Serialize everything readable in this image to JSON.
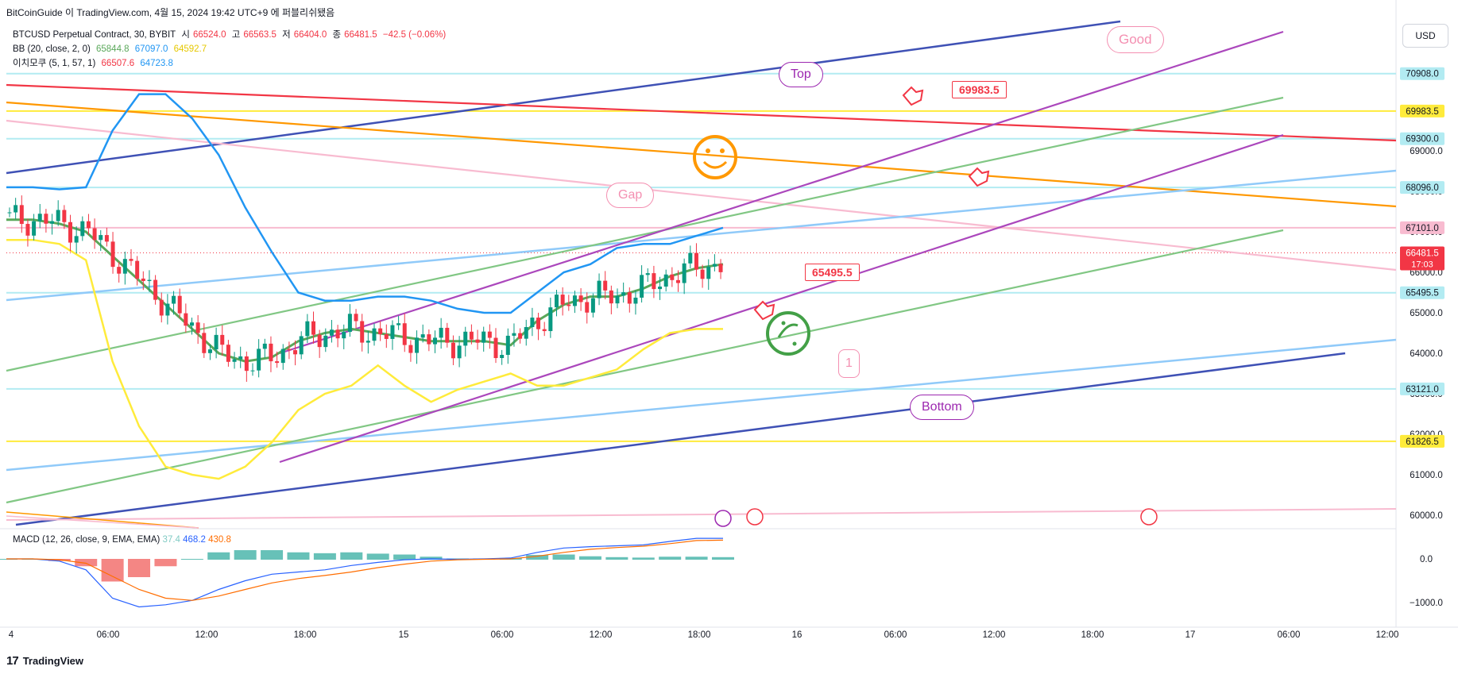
{
  "header": {
    "text": "BitCoinGuide 이 TradingView.com, 4월 15, 2024 19:42 UTC+9 에 퍼블리쉬됐음"
  },
  "legend": {
    "main": {
      "label": "BTCUSD Perpetual Contract, 30, BYBIT",
      "o_label": "시",
      "o": "66524.0",
      "h_label": "고",
      "h": "66563.5",
      "l_label": "저",
      "l": "66404.0",
      "c_label": "종",
      "c": "66481.5",
      "change": "−42.5 (−0.06%)"
    },
    "bb": {
      "label": "BB (20, close, 2, 0)",
      "v1": "65844.8",
      "v2": "67097.0",
      "v3": "64592.7"
    },
    "ichimoku": {
      "label": "이치모쿠 (5, 1, 57, 1)",
      "v1": "66507.6",
      "v2": "64723.8"
    }
  },
  "currency": "USD",
  "macd_legend": {
    "label": "MACD (12, 26, close, 9, EMA, EMA)",
    "v1": "37.4",
    "v2": "468.2",
    "v3": "430.8"
  },
  "footer": {
    "brand": "TradingView",
    "logo": "17"
  },
  "colors": {
    "up": "#089981",
    "down": "#f23645",
    "bb_basis": "#5aa85a",
    "bb_upper": "#2196f3",
    "bb_lower": "#ffeb3b"
  },
  "annotations": {
    "top": "Top",
    "good": "Good",
    "gap": "Gap",
    "bottom": "Bottom",
    "one": "1",
    "tag1": "69983.5",
    "tag2": "65495.5"
  },
  "chart_data": {
    "type": "line",
    "title": "BTCUSD Perpetual Contract, 30, BYBIT",
    "x_ticks": [
      "4",
      "06:00",
      "12:00",
      "18:00",
      "15",
      "06:00",
      "12:00",
      "18:00",
      "16",
      "06:00",
      "12:00",
      "18:00",
      "17",
      "06:00",
      "12:00"
    ],
    "y_ticks": [
      60000,
      61000,
      62000,
      63000,
      64000,
      65000,
      66000,
      67000,
      68000,
      69000
    ],
    "price_labels": [
      {
        "value": "70908.0",
        "color": "#b2ebf2"
      },
      {
        "value": "69983.5",
        "color": "#ffeb3b"
      },
      {
        "value": "69300.0",
        "color": "#b2ebf2"
      },
      {
        "value": "68096.0",
        "color": "#b2ebf2"
      },
      {
        "value": "67101.0",
        "color": "#f8bbd0"
      },
      {
        "value": "66481.5",
        "color": "#f23645"
      },
      {
        "value": "65495.5",
        "color": "#b2ebf2"
      },
      {
        "value": "63121.0",
        "color": "#b2ebf2"
      },
      {
        "value": "61826.5",
        "color": "#ffeb3b"
      }
    ],
    "countdown": "17:03",
    "ylim": [
      59800,
      71600
    ],
    "series": [
      {
        "name": "BB upper",
        "values": [
          68100,
          68100,
          68050,
          68100,
          69500,
          70400,
          70400,
          69800,
          68900,
          67600,
          66500,
          65500,
          65300,
          65300,
          65400,
          65400,
          65300,
          65100,
          65000,
          65000,
          65500,
          66000,
          66200,
          66600,
          66700,
          66700,
          66900,
          67100
        ]
      },
      {
        "name": "BB basis",
        "values": [
          67300,
          67300,
          67200,
          67000,
          66400,
          65800,
          65200,
          64600,
          64000,
          63800,
          63900,
          64300,
          64500,
          64600,
          64500,
          64400,
          64300,
          64300,
          64300,
          64200,
          64800,
          65200,
          65400,
          65400,
          65600,
          65900,
          66100,
          66200
        ]
      },
      {
        "name": "BB lower",
        "values": [
          66800,
          66800,
          66700,
          66300,
          63800,
          62200,
          61200,
          61000,
          60900,
          61200,
          61800,
          62600,
          63000,
          63200,
          63700,
          63200,
          62800,
          63100,
          63300,
          63500,
          63200,
          63200,
          63400,
          63600,
          64100,
          64500,
          64600,
          64600
        ]
      },
      {
        "name": "MACD",
        "values": [
          0,
          0,
          -50,
          -250,
          -900,
          -1100,
          -1050,
          -950,
          -700,
          -500,
          -350,
          -300,
          -250,
          -150,
          -80,
          -20,
          0,
          -10,
          0,
          20,
          150,
          250,
          280,
          300,
          320,
          400,
          470,
          470
        ]
      },
      {
        "name": "Signal",
        "values": [
          0,
          0,
          -20,
          -100,
          -400,
          -700,
          -900,
          -950,
          -850,
          -700,
          -550,
          -450,
          -380,
          -300,
          -200,
          -120,
          -50,
          -20,
          -10,
          0,
          60,
          150,
          220,
          260,
          290,
          350,
          420,
          430
        ]
      }
    ]
  }
}
